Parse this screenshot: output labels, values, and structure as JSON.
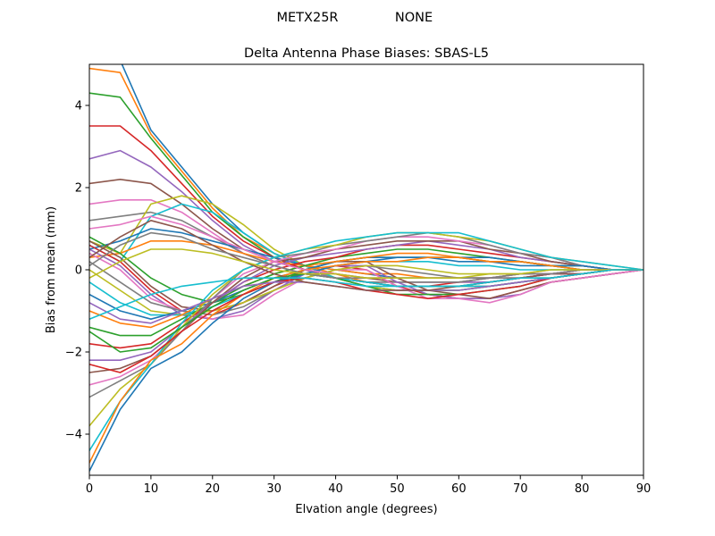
{
  "figure": {
    "suptitle_left": "METX25R",
    "suptitle_right": "NONE"
  },
  "chart_data": {
    "type": "line",
    "title": "Delta Antenna Phase Biases: SBAS-L5",
    "xlabel": "Elvation angle (degrees)",
    "ylabel": "Bias from mean (mm)",
    "xlim": [
      0,
      90
    ],
    "ylim": [
      -5,
      5
    ],
    "xticks": [
      0,
      10,
      20,
      30,
      40,
      50,
      60,
      70,
      80,
      90
    ],
    "yticks": [
      -4,
      -2,
      0,
      2,
      4
    ],
    "xtick_labels": [
      "0",
      "10",
      "20",
      "30",
      "40",
      "50",
      "60",
      "70",
      "80",
      "90"
    ],
    "ytick_labels": [
      "−4",
      "−2",
      "0",
      "2",
      "4"
    ],
    "grid": false,
    "legend": "none",
    "x": [
      0,
      5,
      10,
      15,
      20,
      25,
      30,
      35,
      40,
      45,
      50,
      55,
      60,
      65,
      70,
      75,
      80,
      85,
      90
    ],
    "colors": [
      "#1f77b4",
      "#ff7f0e",
      "#2ca02c",
      "#d62728",
      "#9467bd",
      "#8c564b",
      "#e377c2",
      "#7f7f7f",
      "#bcbd22",
      "#17becf"
    ],
    "series": [
      {
        "values": [
          5.4,
          5.1,
          3.4,
          2.5,
          1.6,
          0.9,
          0.4,
          0.1,
          -0.2,
          -0.4,
          -0.5,
          -0.5,
          -0.5,
          -0.4,
          -0.3,
          -0.2,
          -0.1,
          0.0,
          0.0
        ]
      },
      {
        "values": [
          4.9,
          4.8,
          3.3,
          2.4,
          1.5,
          0.8,
          0.4,
          0.1,
          -0.1,
          -0.3,
          -0.4,
          -0.4,
          -0.4,
          -0.4,
          -0.3,
          -0.2,
          -0.1,
          0.0,
          0.0
        ]
      },
      {
        "values": [
          4.3,
          4.2,
          3.2,
          2.3,
          1.4,
          0.8,
          0.3,
          0.0,
          -0.2,
          -0.3,
          -0.4,
          -0.4,
          -0.4,
          -0.3,
          -0.2,
          -0.2,
          -0.1,
          0.0,
          0.0
        ]
      },
      {
        "values": [
          3.5,
          3.5,
          2.9,
          2.1,
          1.3,
          0.7,
          0.3,
          0.0,
          -0.2,
          -0.3,
          -0.4,
          -0.4,
          -0.3,
          -0.3,
          -0.2,
          -0.1,
          -0.1,
          0.0,
          0.0
        ]
      },
      {
        "values": [
          2.7,
          2.9,
          2.5,
          1.9,
          1.2,
          0.6,
          0.2,
          0.0,
          -0.2,
          -0.3,
          -0.3,
          -0.3,
          -0.3,
          -0.3,
          -0.2,
          -0.1,
          -0.1,
          0.0,
          0.0
        ]
      },
      {
        "values": [
          2.1,
          2.2,
          2.1,
          1.6,
          1.0,
          0.5,
          0.2,
          0.0,
          -0.1,
          -0.2,
          -0.3,
          -0.3,
          -0.3,
          -0.2,
          -0.2,
          -0.1,
          0.0,
          0.0,
          0.0
        ]
      },
      {
        "values": [
          1.6,
          1.7,
          1.7,
          1.4,
          0.9,
          0.4,
          0.1,
          -0.1,
          -0.2,
          -0.3,
          -0.3,
          -0.3,
          -0.3,
          -0.2,
          -0.2,
          -0.1,
          0.0,
          0.0,
          0.0
        ]
      },
      {
        "values": [
          1.2,
          1.3,
          1.4,
          1.2,
          0.8,
          0.4,
          0.1,
          -0.1,
          -0.2,
          -0.3,
          -0.3,
          -0.3,
          -0.3,
          -0.2,
          -0.2,
          -0.1,
          0.0,
          0.0,
          0.0
        ]
      },
      {
        "values": [
          0.7,
          0.4,
          1.6,
          1.8,
          1.6,
          1.1,
          0.5,
          0.1,
          -0.2,
          -0.4,
          -0.5,
          -0.5,
          -0.5,
          -0.4,
          -0.3,
          -0.2,
          -0.1,
          0.0,
          0.0
        ]
      },
      {
        "values": [
          0.6,
          0.2,
          1.3,
          1.6,
          1.4,
          0.9,
          0.4,
          0.1,
          -0.2,
          -0.3,
          -0.4,
          -0.4,
          -0.4,
          -0.4,
          -0.3,
          -0.2,
          -0.1,
          0.0,
          0.0
        ]
      },
      {
        "values": [
          0.5,
          0.7,
          1.0,
          0.9,
          0.7,
          0.5,
          0.3,
          0.1,
          0.0,
          -0.1,
          -0.2,
          -0.2,
          -0.2,
          -0.2,
          -0.1,
          -0.1,
          0.0,
          0.0,
          0.0
        ]
      },
      {
        "values": [
          0.3,
          0.4,
          0.7,
          0.7,
          0.6,
          0.4,
          0.2,
          0.1,
          0.0,
          -0.1,
          -0.1,
          -0.2,
          -0.2,
          -0.2,
          -0.1,
          -0.1,
          0.0,
          0.0,
          0.0
        ]
      },
      {
        "values": [
          0.8,
          0.4,
          -0.2,
          -0.6,
          -0.8,
          -0.6,
          -0.3,
          0.0,
          0.2,
          0.3,
          0.3,
          0.3,
          0.3,
          0.2,
          0.2,
          0.1,
          0.0,
          0.0,
          0.0
        ]
      },
      {
        "values": [
          0.6,
          0.2,
          -0.5,
          -1.0,
          -1.1,
          -0.8,
          -0.4,
          -0.1,
          0.1,
          0.0,
          -0.4,
          -0.6,
          -0.7,
          -0.7,
          -0.5,
          -0.3,
          -0.2,
          -0.1,
          0.0
        ]
      },
      {
        "values": [
          0.5,
          0.1,
          -0.6,
          -1.1,
          -1.2,
          -1.0,
          -0.5,
          -0.1,
          0.1,
          0.1,
          -0.3,
          -0.6,
          -0.7,
          -0.7,
          -0.6,
          -0.3,
          -0.2,
          -0.1,
          0.0
        ]
      },
      {
        "values": [
          0.7,
          0.3,
          -0.4,
          -0.9,
          -1.0,
          -0.8,
          -0.4,
          0.0,
          0.2,
          0.2,
          -0.2,
          -0.5,
          -0.6,
          -0.7,
          -0.5,
          -0.3,
          -0.2,
          -0.1,
          0.0
        ]
      },
      {
        "values": [
          0.4,
          0.0,
          -0.7,
          -1.0,
          -1.2,
          -1.1,
          -0.6,
          -0.2,
          0.0,
          0.0,
          -0.4,
          -0.7,
          -0.7,
          -0.8,
          -0.6,
          -0.3,
          -0.2,
          -0.1,
          0.0
        ]
      },
      {
        "values": [
          0.2,
          -0.3,
          -0.8,
          -1.0,
          -1.1,
          -0.9,
          -0.5,
          -0.2,
          0.0,
          0.1,
          0.0,
          -0.1,
          -0.2,
          -0.2,
          -0.1,
          -0.1,
          0.0,
          0.0,
          0.0
        ]
      },
      {
        "values": [
          0.0,
          -0.5,
          -1.0,
          -1.1,
          -1.0,
          -0.8,
          -0.5,
          -0.2,
          0.0,
          0.1,
          0.1,
          0.0,
          -0.1,
          -0.1,
          -0.1,
          0.0,
          0.0,
          0.0,
          0.0
        ]
      },
      {
        "values": [
          -0.3,
          -0.8,
          -1.1,
          -1.1,
          -0.9,
          -0.6,
          -0.3,
          -0.1,
          0.1,
          0.2,
          0.2,
          0.2,
          0.1,
          0.1,
          0.0,
          0.0,
          0.0,
          0.0,
          0.0
        ]
      },
      {
        "values": [
          -0.6,
          -1.0,
          -1.2,
          -1.0,
          -0.8,
          -0.5,
          -0.2,
          0.0,
          0.2,
          0.3,
          0.3,
          0.3,
          0.2,
          0.2,
          0.1,
          0.1,
          0.0,
          0.0,
          0.0
        ]
      },
      {
        "values": [
          -1.0,
          -1.3,
          -1.4,
          -1.1,
          -0.7,
          -0.4,
          -0.1,
          0.1,
          0.2,
          0.3,
          0.4,
          0.4,
          0.3,
          0.2,
          0.2,
          0.1,
          0.1,
          0.0,
          0.0
        ]
      },
      {
        "values": [
          -1.4,
          -1.6,
          -1.6,
          -1.2,
          -0.8,
          -0.4,
          -0.1,
          0.1,
          0.3,
          0.4,
          0.5,
          0.5,
          0.4,
          0.3,
          0.2,
          0.1,
          0.1,
          0.0,
          0.0
        ]
      },
      {
        "values": [
          -1.8,
          -1.9,
          -1.8,
          -1.3,
          -0.8,
          -0.3,
          0.0,
          0.2,
          0.3,
          0.5,
          0.6,
          0.6,
          0.5,
          0.4,
          0.3,
          0.2,
          0.1,
          0.0,
          0.0
        ]
      },
      {
        "values": [
          -2.2,
          -2.2,
          -2.0,
          -1.4,
          -0.8,
          -0.3,
          0.1,
          0.3,
          0.4,
          0.5,
          0.6,
          0.7,
          0.6,
          0.5,
          0.3,
          0.2,
          0.1,
          0.0,
          0.0
        ]
      },
      {
        "values": [
          -2.5,
          -2.4,
          -2.1,
          -1.5,
          -0.8,
          -0.2,
          0.2,
          0.3,
          0.5,
          0.6,
          0.7,
          0.7,
          0.7,
          0.5,
          0.4,
          0.2,
          0.1,
          0.0,
          0.0
        ]
      },
      {
        "values": [
          -2.8,
          -2.6,
          -2.2,
          -1.5,
          -0.7,
          -0.1,
          0.2,
          0.4,
          0.5,
          0.7,
          0.8,
          0.8,
          0.7,
          0.6,
          0.4,
          0.3,
          0.1,
          0.0,
          0.0
        ]
      },
      {
        "values": [
          -3.1,
          -2.7,
          -2.3,
          -1.5,
          -0.7,
          0.0,
          0.3,
          0.4,
          0.6,
          0.7,
          0.8,
          0.9,
          0.8,
          0.6,
          0.4,
          0.3,
          0.1,
          0.0,
          0.0
        ]
      },
      {
        "values": [
          -3.8,
          -2.9,
          -2.3,
          -1.4,
          -0.6,
          0.0,
          0.3,
          0.5,
          0.6,
          0.8,
          0.9,
          0.9,
          0.8,
          0.7,
          0.5,
          0.3,
          0.2,
          0.1,
          0.0
        ]
      },
      {
        "values": [
          -4.4,
          -3.2,
          -2.3,
          -1.3,
          -0.5,
          0.0,
          0.3,
          0.5,
          0.7,
          0.8,
          0.9,
          0.9,
          0.9,
          0.7,
          0.5,
          0.3,
          0.2,
          0.1,
          0.0
        ]
      },
      {
        "values": [
          -4.9,
          -3.4,
          -2.4,
          -2.0,
          -1.3,
          -0.7,
          -0.3,
          -0.1,
          0.1,
          0.2,
          0.3,
          0.3,
          0.3,
          0.3,
          0.2,
          0.1,
          0.1,
          0.0,
          0.0
        ]
      },
      {
        "values": [
          -4.7,
          -3.2,
          -2.2,
          -1.8,
          -1.1,
          -0.6,
          -0.2,
          0.0,
          0.1,
          0.2,
          0.2,
          0.3,
          0.3,
          0.2,
          0.2,
          0.1,
          0.0,
          0.0,
          0.0
        ]
      },
      {
        "values": [
          -1.5,
          -2.0,
          -1.9,
          -1.4,
          -0.9,
          -0.5,
          -0.2,
          -0.1,
          -0.2,
          -0.4,
          -0.6,
          -0.6,
          -0.6,
          -0.5,
          -0.4,
          -0.2,
          -0.1,
          0.0,
          0.0
        ]
      },
      {
        "values": [
          -2.3,
          -2.5,
          -2.1,
          -1.5,
          -1.0,
          -0.6,
          -0.3,
          -0.2,
          -0.3,
          -0.5,
          -0.6,
          -0.7,
          -0.6,
          -0.5,
          -0.4,
          -0.2,
          -0.1,
          0.0,
          0.0
        ]
      },
      {
        "values": [
          -0.8,
          -1.2,
          -1.3,
          -1.0,
          -0.7,
          -0.4,
          -0.3,
          -0.3,
          -0.4,
          -0.5,
          -0.5,
          -0.5,
          -0.5,
          -0.4,
          -0.3,
          -0.2,
          -0.1,
          0.0,
          0.0
        ]
      },
      {
        "values": [
          0.3,
          0.8,
          1.2,
          1.0,
          0.6,
          0.2,
          -0.1,
          -0.3,
          -0.4,
          -0.5,
          -0.5,
          -0.5,
          -0.4,
          -0.3,
          -0.2,
          -0.1,
          -0.1,
          0.0,
          0.0
        ]
      },
      {
        "values": [
          1.0,
          1.1,
          1.3,
          1.1,
          0.8,
          0.5,
          0.2,
          0.0,
          -0.1,
          -0.2,
          -0.2,
          -0.2,
          -0.2,
          -0.2,
          -0.1,
          -0.1,
          0.0,
          0.0,
          0.0
        ]
      },
      {
        "values": [
          0.1,
          0.6,
          0.9,
          0.8,
          0.5,
          0.3,
          0.1,
          -0.1,
          -0.2,
          -0.2,
          -0.2,
          -0.2,
          -0.2,
          -0.2,
          -0.1,
          -0.1,
          0.0,
          0.0,
          0.0
        ]
      },
      {
        "values": [
          -0.2,
          0.2,
          0.5,
          0.5,
          0.4,
          0.2,
          0.0,
          -0.1,
          -0.1,
          -0.2,
          -0.2,
          -0.2,
          -0.2,
          -0.1,
          -0.1,
          0.0,
          0.0,
          0.0,
          0.0
        ]
      },
      {
        "values": [
          -1.2,
          -0.9,
          -0.6,
          -0.4,
          -0.3,
          -0.2,
          -0.2,
          -0.2,
          -0.3,
          -0.4,
          -0.4,
          -0.4,
          -0.4,
          -0.3,
          -0.2,
          -0.2,
          -0.1,
          0.0,
          0.0
        ]
      }
    ]
  }
}
